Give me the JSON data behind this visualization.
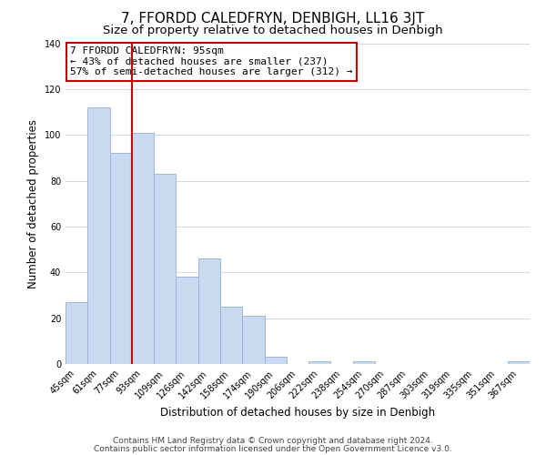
{
  "title": "7, FFORDD CALEDFRYN, DENBIGH, LL16 3JT",
  "subtitle": "Size of property relative to detached houses in Denbigh",
  "xlabel": "Distribution of detached houses by size in Denbigh",
  "ylabel": "Number of detached properties",
  "bar_labels": [
    "45sqm",
    "61sqm",
    "77sqm",
    "93sqm",
    "109sqm",
    "126sqm",
    "142sqm",
    "158sqm",
    "174sqm",
    "190sqm",
    "206sqm",
    "222sqm",
    "238sqm",
    "254sqm",
    "270sqm",
    "287sqm",
    "303sqm",
    "319sqm",
    "335sqm",
    "351sqm",
    "367sqm"
  ],
  "bar_values": [
    27,
    112,
    92,
    101,
    83,
    38,
    46,
    25,
    21,
    3,
    0,
    1,
    0,
    1,
    0,
    0,
    0,
    0,
    0,
    0,
    1
  ],
  "bar_color": "#c9daf0",
  "bar_edge_color": "#9ab8d8",
  "annotation_box_text": "7 FFORDD CALEDFRYN: 95sqm\n← 43% of detached houses are smaller (237)\n57% of semi-detached houses are larger (312) →",
  "annotation_box_edgecolor": "#cc0000",
  "annotation_box_facecolor": "#ffffff",
  "vline_x": 2.5,
  "vline_color": "#cc0000",
  "ylim": [
    0,
    140
  ],
  "yticks": [
    0,
    20,
    40,
    60,
    80,
    100,
    120,
    140
  ],
  "footer_line1": "Contains HM Land Registry data © Crown copyright and database right 2024.",
  "footer_line2": "Contains public sector information licensed under the Open Government Licence v3.0.",
  "bg_color": "#ffffff",
  "plot_bg_color": "#ffffff",
  "grid_color": "#d0dce8",
  "title_fontsize": 11,
  "subtitle_fontsize": 9.5,
  "axis_label_fontsize": 8.5,
  "tick_fontsize": 7,
  "annotation_fontsize": 8,
  "footer_fontsize": 6.5
}
